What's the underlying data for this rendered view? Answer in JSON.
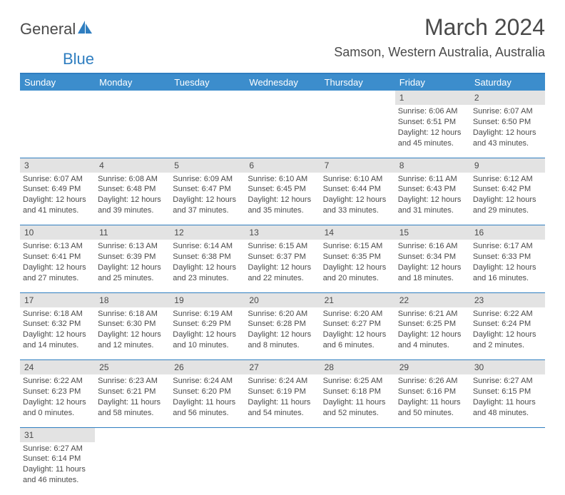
{
  "logo": {
    "part1": "General",
    "part2": "Blue"
  },
  "title": "March 2024",
  "location": "Samson, Western Australia, Australia",
  "colors": {
    "header_bg": "#3c8dcc",
    "accent": "#2f7ec0",
    "daynum_bg": "#e3e3e3",
    "text": "#4a4a4a"
  },
  "day_headers": [
    "Sunday",
    "Monday",
    "Tuesday",
    "Wednesday",
    "Thursday",
    "Friday",
    "Saturday"
  ],
  "weeks": [
    [
      null,
      null,
      null,
      null,
      null,
      {
        "n": "1",
        "sr": "6:06 AM",
        "ss": "6:51 PM",
        "dh": "12",
        "dm": "45"
      },
      {
        "n": "2",
        "sr": "6:07 AM",
        "ss": "6:50 PM",
        "dh": "12",
        "dm": "43"
      }
    ],
    [
      {
        "n": "3",
        "sr": "6:07 AM",
        "ss": "6:49 PM",
        "dh": "12",
        "dm": "41"
      },
      {
        "n": "4",
        "sr": "6:08 AM",
        "ss": "6:48 PM",
        "dh": "12",
        "dm": "39"
      },
      {
        "n": "5",
        "sr": "6:09 AM",
        "ss": "6:47 PM",
        "dh": "12",
        "dm": "37"
      },
      {
        "n": "6",
        "sr": "6:10 AM",
        "ss": "6:45 PM",
        "dh": "12",
        "dm": "35"
      },
      {
        "n": "7",
        "sr": "6:10 AM",
        "ss": "6:44 PM",
        "dh": "12",
        "dm": "33"
      },
      {
        "n": "8",
        "sr": "6:11 AM",
        "ss": "6:43 PM",
        "dh": "12",
        "dm": "31"
      },
      {
        "n": "9",
        "sr": "6:12 AM",
        "ss": "6:42 PM",
        "dh": "12",
        "dm": "29"
      }
    ],
    [
      {
        "n": "10",
        "sr": "6:13 AM",
        "ss": "6:41 PM",
        "dh": "12",
        "dm": "27"
      },
      {
        "n": "11",
        "sr": "6:13 AM",
        "ss": "6:39 PM",
        "dh": "12",
        "dm": "25"
      },
      {
        "n": "12",
        "sr": "6:14 AM",
        "ss": "6:38 PM",
        "dh": "12",
        "dm": "23"
      },
      {
        "n": "13",
        "sr": "6:15 AM",
        "ss": "6:37 PM",
        "dh": "12",
        "dm": "22"
      },
      {
        "n": "14",
        "sr": "6:15 AM",
        "ss": "6:35 PM",
        "dh": "12",
        "dm": "20"
      },
      {
        "n": "15",
        "sr": "6:16 AM",
        "ss": "6:34 PM",
        "dh": "12",
        "dm": "18"
      },
      {
        "n": "16",
        "sr": "6:17 AM",
        "ss": "6:33 PM",
        "dh": "12",
        "dm": "16"
      }
    ],
    [
      {
        "n": "17",
        "sr": "6:18 AM",
        "ss": "6:32 PM",
        "dh": "12",
        "dm": "14"
      },
      {
        "n": "18",
        "sr": "6:18 AM",
        "ss": "6:30 PM",
        "dh": "12",
        "dm": "12"
      },
      {
        "n": "19",
        "sr": "6:19 AM",
        "ss": "6:29 PM",
        "dh": "12",
        "dm": "10"
      },
      {
        "n": "20",
        "sr": "6:20 AM",
        "ss": "6:28 PM",
        "dh": "12",
        "dm": "8"
      },
      {
        "n": "21",
        "sr": "6:20 AM",
        "ss": "6:27 PM",
        "dh": "12",
        "dm": "6"
      },
      {
        "n": "22",
        "sr": "6:21 AM",
        "ss": "6:25 PM",
        "dh": "12",
        "dm": "4"
      },
      {
        "n": "23",
        "sr": "6:22 AM",
        "ss": "6:24 PM",
        "dh": "12",
        "dm": "2"
      }
    ],
    [
      {
        "n": "24",
        "sr": "6:22 AM",
        "ss": "6:23 PM",
        "dh": "12",
        "dm": "0"
      },
      {
        "n": "25",
        "sr": "6:23 AM",
        "ss": "6:21 PM",
        "dh": "11",
        "dm": "58"
      },
      {
        "n": "26",
        "sr": "6:24 AM",
        "ss": "6:20 PM",
        "dh": "11",
        "dm": "56"
      },
      {
        "n": "27",
        "sr": "6:24 AM",
        "ss": "6:19 PM",
        "dh": "11",
        "dm": "54"
      },
      {
        "n": "28",
        "sr": "6:25 AM",
        "ss": "6:18 PM",
        "dh": "11",
        "dm": "52"
      },
      {
        "n": "29",
        "sr": "6:26 AM",
        "ss": "6:16 PM",
        "dh": "11",
        "dm": "50"
      },
      {
        "n": "30",
        "sr": "6:27 AM",
        "ss": "6:15 PM",
        "dh": "11",
        "dm": "48"
      }
    ],
    [
      {
        "n": "31",
        "sr": "6:27 AM",
        "ss": "6:14 PM",
        "dh": "11",
        "dm": "46"
      },
      null,
      null,
      null,
      null,
      null,
      null
    ]
  ],
  "labels": {
    "sunrise": "Sunrise:",
    "sunset": "Sunset:",
    "daylight": "Daylight:",
    "hours": "hours",
    "and": "and",
    "minutes": "minutes."
  }
}
